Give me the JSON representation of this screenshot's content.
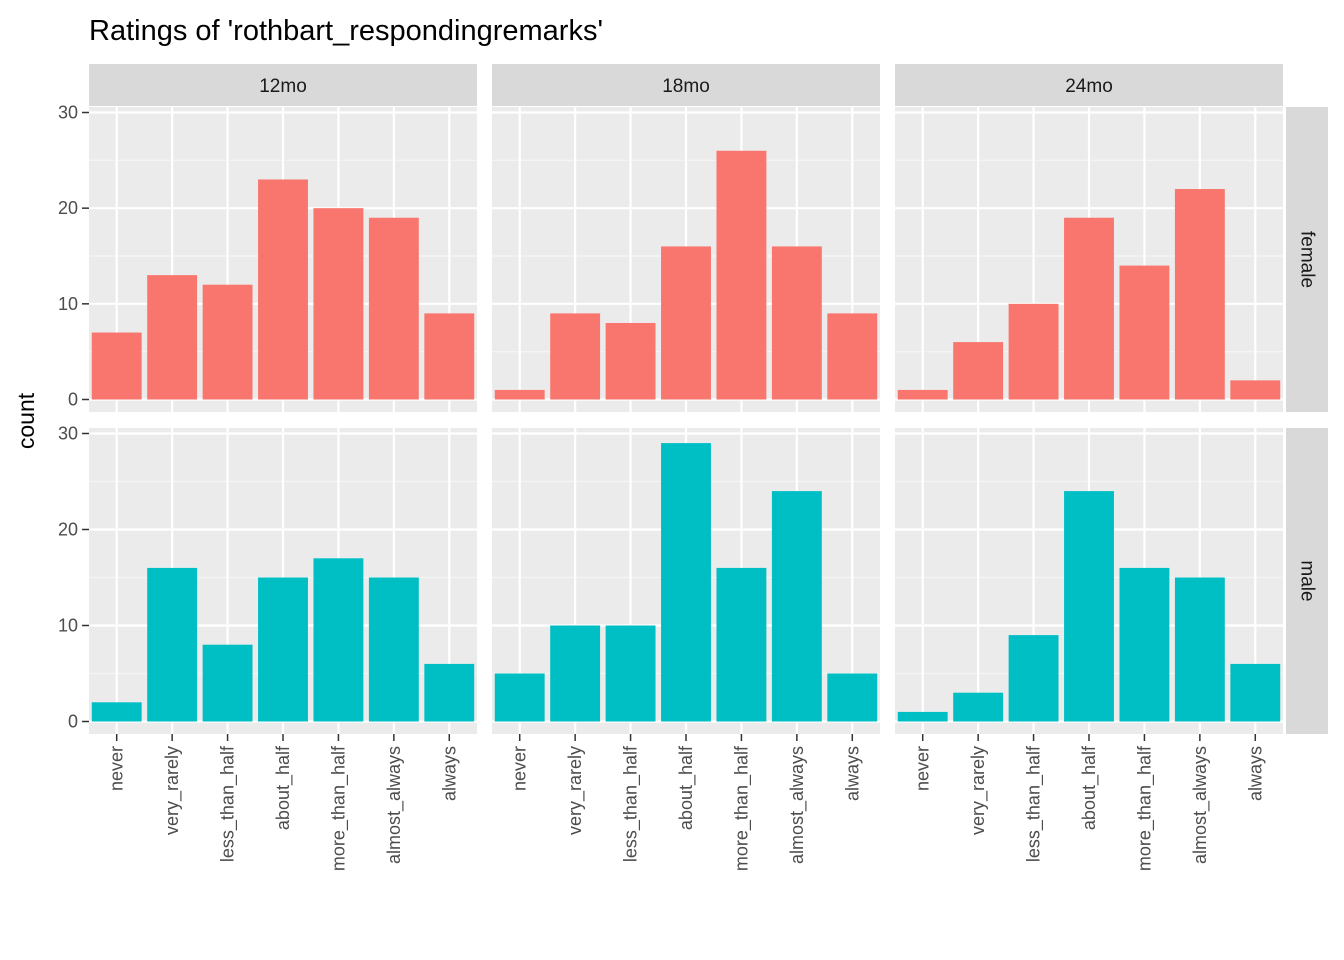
{
  "chart_data": {
    "type": "bar",
    "title": "Ratings of 'rothbart_respondingremarks'",
    "ylabel": "count",
    "xlabel": "",
    "ylim": [
      0,
      30
    ],
    "y_ticks": [
      0,
      10,
      20,
      30
    ],
    "categories": [
      "never",
      "very_rarely",
      "less_than_half",
      "about_half",
      "more_than_half",
      "almost_always",
      "always"
    ],
    "columns": [
      "12mo",
      "18mo",
      "24mo"
    ],
    "rows": [
      "female",
      "male"
    ],
    "series_colors": {
      "female": "#F8766D",
      "male": "#00BFC4"
    },
    "grid": true,
    "legend": "none",
    "panels": [
      {
        "column": "12mo",
        "row": "female",
        "values": [
          7,
          13,
          12,
          23,
          20,
          19,
          9
        ]
      },
      {
        "column": "18mo",
        "row": "female",
        "values": [
          1,
          9,
          8,
          16,
          26,
          16,
          9
        ]
      },
      {
        "column": "24mo",
        "row": "female",
        "values": [
          1,
          6,
          10,
          19,
          14,
          22,
          2
        ]
      },
      {
        "column": "12mo",
        "row": "male",
        "values": [
          2,
          16,
          8,
          15,
          17,
          15,
          6
        ]
      },
      {
        "column": "18mo",
        "row": "male",
        "values": [
          5,
          10,
          10,
          29,
          16,
          24,
          5
        ]
      },
      {
        "column": "24mo",
        "row": "male",
        "values": [
          1,
          3,
          9,
          24,
          16,
          15,
          6
        ]
      }
    ]
  }
}
